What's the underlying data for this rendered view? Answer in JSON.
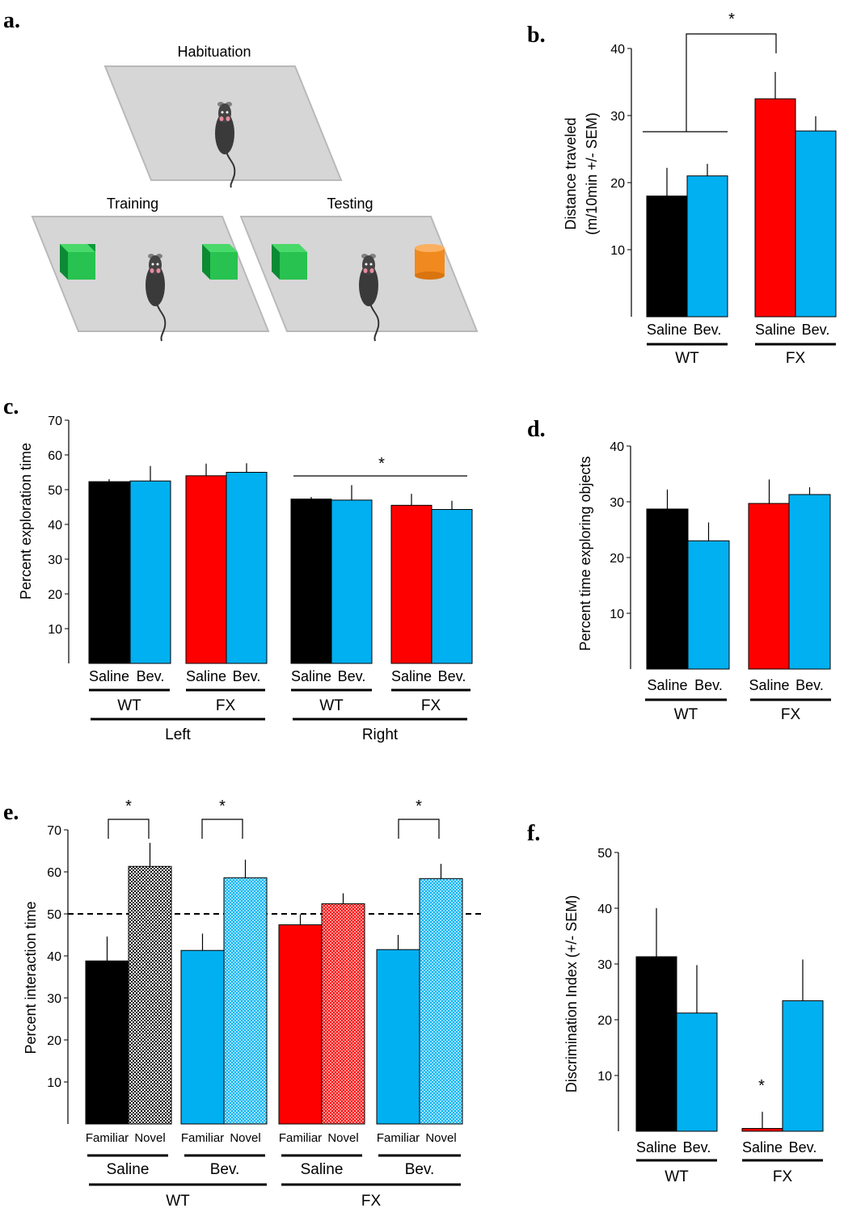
{
  "panel_a": {
    "label": "a.",
    "habituation_label": "Habituation",
    "training_label": "Training",
    "testing_label": "Testing"
  },
  "chart_data": [
    {
      "id": "b",
      "type": "bar",
      "panel_label": "b.",
      "ylabel_lines": [
        "Distance traveled",
        "(m/10min +/- SEM)"
      ],
      "yticks": [
        10,
        20,
        30,
        40
      ],
      "ylim": [
        0,
        40
      ],
      "categories": [
        "Saline",
        "Bev.",
        "Saline",
        "Bev."
      ],
      "values": [
        18.0,
        21.0,
        32.5,
        27.7
      ],
      "errors": [
        4.2,
        1.8,
        4.0,
        2.2
      ],
      "colors": [
        "#000000",
        "#00b0f0",
        "#ff0000",
        "#00b0f0"
      ],
      "group_labels": [
        "WT",
        "FX"
      ],
      "annotations": [
        "*"
      ]
    },
    {
      "id": "c",
      "type": "bar",
      "panel_label": "c.",
      "ylabel": "Percent exploration time",
      "yticks": [
        10,
        20,
        30,
        40,
        50,
        60,
        70
      ],
      "ylim": [
        0,
        70
      ],
      "categories": [
        "Saline",
        "Bev.",
        "Saline",
        "Bev.",
        "Saline",
        "Bev.",
        "Saline",
        "Bev."
      ],
      "values": [
        52.3,
        52.5,
        54.0,
        55.0,
        47.3,
        47.0,
        45.5,
        44.3
      ],
      "errors": [
        0.7,
        4.3,
        3.5,
        2.6,
        0.6,
        4.3,
        3.3,
        2.5
      ],
      "colors": [
        "#000000",
        "#00b0f0",
        "#ff0000",
        "#00b0f0",
        "#000000",
        "#00b0f0",
        "#ff0000",
        "#00b0f0"
      ],
      "group_labels": [
        "WT",
        "FX",
        "WT",
        "FX"
      ],
      "supergroup_labels": [
        "Left",
        "Right"
      ],
      "annotations": [
        "*"
      ]
    },
    {
      "id": "d",
      "type": "bar",
      "panel_label": "d.",
      "ylabel": "Percent time exploring objects",
      "yticks": [
        10,
        20,
        30,
        40
      ],
      "ylim": [
        0,
        40
      ],
      "categories": [
        "Saline",
        "Bev.",
        "Saline",
        "Bev."
      ],
      "values": [
        28.7,
        23.0,
        29.7,
        31.3
      ],
      "errors": [
        3.5,
        3.3,
        4.3,
        1.3
      ],
      "colors": [
        "#000000",
        "#00b0f0",
        "#ff0000",
        "#00b0f0"
      ],
      "group_labels": [
        "WT",
        "FX"
      ]
    },
    {
      "id": "e",
      "type": "bar",
      "panel_label": "e.",
      "ylabel": "Percent interaction time",
      "yticks": [
        10,
        20,
        30,
        40,
        50,
        60,
        70
      ],
      "ylim": [
        0,
        70
      ],
      "reference_line": 50,
      "categories": [
        "Familiar",
        "Novel",
        "Familiar",
        "Novel",
        "Familiar",
        "Novel",
        "Familiar",
        "Novel"
      ],
      "values": [
        38.8,
        61.3,
        41.3,
        58.6,
        47.4,
        52.4,
        41.5,
        58.4
      ],
      "errors": [
        5.8,
        5.6,
        4.0,
        4.3,
        2.5,
        2.5,
        3.5,
        3.5
      ],
      "colors": [
        "#000000",
        "#000000",
        "#00b0f0",
        "#00b0f0",
        "#ff0000",
        "#ff0000",
        "#00b0f0",
        "#00b0f0"
      ],
      "patterned": [
        false,
        true,
        false,
        true,
        false,
        true,
        false,
        true
      ],
      "group_labels": [
        "Saline",
        "Bev.",
        "Saline",
        "Bev."
      ],
      "supergroup_labels": [
        "WT",
        "FX"
      ],
      "annotations": [
        "*",
        "*",
        "*"
      ]
    },
    {
      "id": "f",
      "type": "bar",
      "panel_label": "f.",
      "ylabel": "Discrimination Index (+/- SEM)",
      "yticks": [
        10,
        20,
        30,
        40,
        50
      ],
      "ylim": [
        0,
        50
      ],
      "categories": [
        "Saline",
        "Bev.",
        "Saline",
        "Bev."
      ],
      "values": [
        31.3,
        21.2,
        0.5,
        23.4
      ],
      "errors": [
        8.7,
        8.6,
        3.0,
        7.4
      ],
      "colors": [
        "#000000",
        "#00b0f0",
        "#ff0000",
        "#00b0f0"
      ],
      "group_labels": [
        "WT",
        "FX"
      ],
      "annotations": [
        "*"
      ]
    }
  ]
}
